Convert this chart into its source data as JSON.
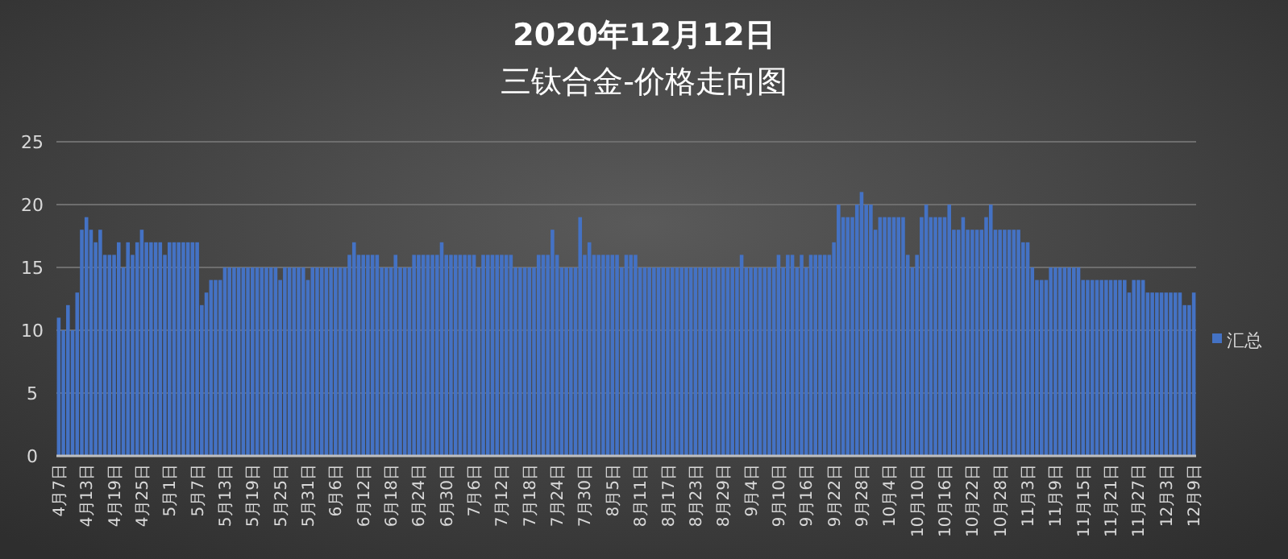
{
  "chart_data": {
    "type": "bar",
    "title": "2020年12月12日",
    "subtitle": "三钛合金-价格走向图",
    "categories": [
      "4月7日",
      null,
      null,
      null,
      null,
      null,
      "4月13日",
      null,
      null,
      null,
      null,
      null,
      "4月19日",
      null,
      null,
      null,
      null,
      null,
      "4月25日",
      null,
      null,
      null,
      null,
      null,
      "5月1日",
      null,
      null,
      null,
      null,
      null,
      "5月7日",
      null,
      null,
      null,
      null,
      null,
      "5月13日",
      null,
      null,
      null,
      null,
      null,
      "5月19日",
      null,
      null,
      null,
      null,
      null,
      "5月25日",
      null,
      null,
      null,
      null,
      null,
      "5月31日",
      null,
      null,
      null,
      null,
      null,
      "6月6日",
      null,
      null,
      null,
      null,
      null,
      "6月12日",
      null,
      null,
      null,
      null,
      null,
      "6月18日",
      null,
      null,
      null,
      null,
      null,
      "6月24日",
      null,
      null,
      null,
      null,
      null,
      "6月30日",
      null,
      null,
      null,
      null,
      null,
      "7月6日",
      null,
      null,
      null,
      null,
      null,
      "7月12日",
      null,
      null,
      null,
      null,
      null,
      "7月18日",
      null,
      null,
      null,
      null,
      null,
      "7月24日",
      null,
      null,
      null,
      null,
      null,
      "7月30日",
      null,
      null,
      null,
      null,
      null,
      "8月5日",
      null,
      null,
      null,
      null,
      null,
      "8月11日",
      null,
      null,
      null,
      null,
      null,
      "8月17日",
      null,
      null,
      null,
      null,
      null,
      "8月23日",
      null,
      null,
      null,
      null,
      null,
      "8月29日",
      null,
      null,
      null,
      null,
      null,
      "9月4日",
      null,
      null,
      null,
      null,
      null,
      "9月10日",
      null,
      null,
      null,
      null,
      null,
      "9月16日",
      null,
      null,
      null,
      null,
      null,
      "9月22日",
      null,
      null,
      null,
      null,
      null,
      "9月28日",
      null,
      null,
      null,
      null,
      null,
      "10月4日",
      null,
      null,
      null,
      null,
      null,
      "10月10日",
      null,
      null,
      null,
      null,
      null,
      "10月16日",
      null,
      null,
      null,
      null,
      null,
      "10月22日",
      null,
      null,
      null,
      null,
      null,
      "10月28日",
      null,
      null,
      null,
      null,
      null,
      "11月3日",
      null,
      null,
      null,
      null,
      null,
      "11月9日",
      null,
      null,
      null,
      null,
      null,
      "11月15日",
      null,
      null,
      null,
      null,
      null,
      "11月21日",
      null,
      null,
      null,
      null,
      null,
      "11月27日",
      null,
      null,
      null,
      null,
      null,
      "12月3日",
      null,
      null,
      null,
      null,
      null,
      "12月9日"
    ],
    "series": [
      {
        "name": "汇总",
        "color": "#4472c4",
        "values": [
          11,
          10,
          12,
          10,
          13,
          18,
          19,
          18,
          17,
          18,
          16,
          16,
          16,
          17,
          15,
          17,
          16,
          17,
          18,
          17,
          17,
          17,
          17,
          16,
          17,
          17,
          17,
          17,
          17,
          17,
          17,
          12,
          13,
          14,
          14,
          14,
          15,
          15,
          15,
          15,
          15,
          15,
          15,
          15,
          15,
          15,
          15,
          15,
          14,
          15,
          15,
          15,
          15,
          15,
          14,
          15,
          15,
          15,
          15,
          15,
          15,
          15,
          15,
          16,
          17,
          16,
          16,
          16,
          16,
          16,
          15,
          15,
          15,
          16,
          15,
          15,
          15,
          16,
          16,
          16,
          16,
          16,
          16,
          17,
          16,
          16,
          16,
          16,
          16,
          16,
          16,
          15,
          16,
          16,
          16,
          16,
          16,
          16,
          16,
          15,
          15,
          15,
          15,
          15,
          16,
          16,
          16,
          18,
          16,
          15,
          15,
          15,
          15,
          19,
          16,
          17,
          16,
          16,
          16,
          16,
          16,
          16,
          15,
          16,
          16,
          16,
          15,
          15,
          15,
          15,
          15,
          15,
          15,
          15,
          15,
          15,
          15,
          15,
          15,
          15,
          15,
          15,
          15,
          15,
          15,
          15,
          15,
          15,
          16,
          15,
          15,
          15,
          15,
          15,
          15,
          15,
          16,
          15,
          16,
          16,
          15,
          16,
          15,
          16,
          16,
          16,
          16,
          16,
          17,
          20,
          19,
          19,
          19,
          20,
          21,
          20,
          20,
          18,
          19,
          19,
          19,
          19,
          19,
          19,
          16,
          15,
          16,
          19,
          20,
          19,
          19,
          19,
          19,
          20,
          18,
          18,
          19,
          18,
          18,
          18,
          18,
          19,
          20,
          18,
          18,
          18,
          18,
          18,
          18,
          17,
          17,
          15,
          14,
          14,
          14,
          15,
          15,
          15,
          15,
          15,
          15,
          15,
          14,
          14,
          14,
          14,
          14,
          14,
          14,
          14,
          14,
          14,
          13,
          14,
          14,
          14,
          13,
          13,
          13,
          13,
          13,
          13,
          13,
          13,
          12,
          12,
          13
        ]
      }
    ],
    "ylim": [
      0,
      25
    ],
    "yticks": [
      0,
      5,
      10,
      15,
      20,
      25
    ],
    "grid": "y",
    "legend": "right"
  }
}
